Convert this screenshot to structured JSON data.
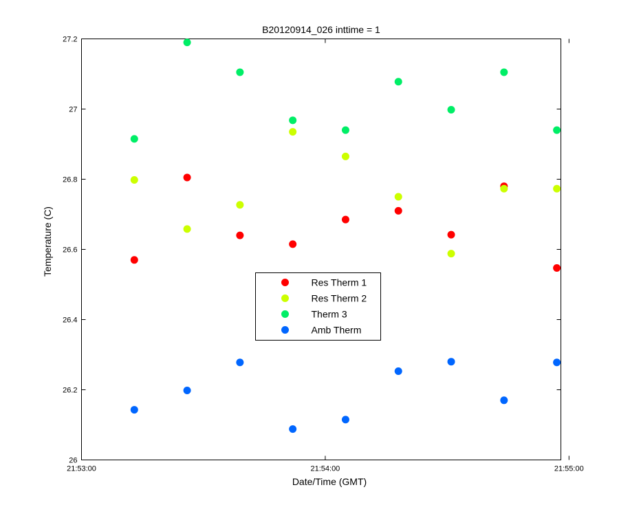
{
  "chart_data": {
    "type": "scatter",
    "title": "B20120914_026 inttime = 1",
    "xlabel": "Date/Time (GMT)",
    "ylabel": "Temperature (C)",
    "x_ticks": [
      "21:53:00",
      "21:54:00",
      "21:55:00"
    ],
    "y_ticks": [
      "26",
      "26.2",
      "26.4",
      "26.6",
      "26.8",
      "27",
      "27.2"
    ],
    "x": [
      "21:53:13",
      "21:53:26",
      "21:53:39",
      "21:53:52",
      "21:54:05",
      "21:54:18",
      "21:54:31",
      "21:54:44",
      "21:54:57"
    ],
    "xlim": [
      "21:53:00",
      "21:54:58"
    ],
    "ylim": [
      26,
      27.2
    ],
    "grid": false,
    "legend_position": "center",
    "series": [
      {
        "name": "Res Therm 1",
        "color": "#ff0000",
        "values": [
          26.57,
          26.805,
          26.64,
          26.615,
          26.685,
          26.71,
          26.642,
          26.78,
          26.547
        ]
      },
      {
        "name": "Res Therm 2",
        "color": "#ccff00",
        "values": [
          26.798,
          26.658,
          26.727,
          26.935,
          26.865,
          26.75,
          26.588,
          26.773,
          26.773
        ]
      },
      {
        "name": "Therm 3",
        "color": "#00ee66",
        "values": [
          26.915,
          27.19,
          27.105,
          26.968,
          26.94,
          27.078,
          26.998,
          27.105,
          26.94
        ]
      },
      {
        "name": "Amb Therm",
        "color": "#0066ff",
        "values": [
          26.143,
          26.198,
          26.278,
          26.088,
          26.115,
          26.253,
          26.28,
          26.17,
          26.278
        ]
      }
    ]
  }
}
